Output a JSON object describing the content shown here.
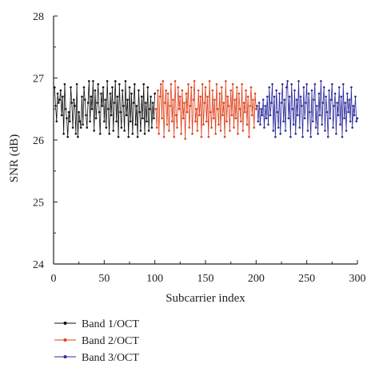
{
  "chart_data": {
    "type": "line",
    "xlabel": "Subcarrier index",
    "ylabel": "SNR (dB)",
    "xlim": [
      0,
      300
    ],
    "ylim": [
      24,
      28
    ],
    "xticks": [
      0,
      50,
      100,
      150,
      200,
      250,
      300
    ],
    "yticks": [
      24,
      25,
      26,
      27,
      28
    ],
    "grid": false,
    "legend_position": "bottom-left",
    "series": [
      {
        "name": "Band 1/OCT",
        "color": "#111111",
        "x": [
          1,
          2,
          3,
          4,
          5,
          6,
          7,
          8,
          9,
          10,
          11,
          12,
          13,
          14,
          15,
          16,
          17,
          18,
          19,
          20,
          21,
          22,
          23,
          24,
          25,
          26,
          27,
          28,
          29,
          30,
          31,
          32,
          33,
          34,
          35,
          36,
          37,
          38,
          39,
          40,
          41,
          42,
          43,
          44,
          45,
          46,
          47,
          48,
          49,
          50,
          51,
          52,
          53,
          54,
          55,
          56,
          57,
          58,
          59,
          60,
          61,
          62,
          63,
          64,
          65,
          66,
          67,
          68,
          69,
          70,
          71,
          72,
          73,
          74,
          75,
          76,
          77,
          78,
          79,
          80,
          81,
          82,
          83,
          84,
          85,
          86,
          87,
          88,
          89,
          90,
          91,
          92,
          93,
          94,
          95,
          96,
          97,
          98,
          99,
          100
        ],
        "y": [
          26.85,
          26.55,
          26.3,
          26.75,
          26.6,
          26.65,
          26.8,
          26.4,
          26.7,
          26.1,
          26.9,
          26.5,
          26.35,
          26.05,
          26.45,
          26.3,
          26.85,
          26.6,
          26.2,
          26.65,
          26.55,
          26.1,
          26.9,
          26.05,
          26.45,
          26.3,
          26.2,
          26.7,
          26.25,
          26.85,
          26.65,
          26.4,
          26.2,
          26.6,
          26.95,
          26.3,
          26.7,
          26.5,
          26.95,
          26.15,
          26.8,
          26.35,
          26.6,
          26.9,
          26.45,
          26.1,
          26.75,
          26.55,
          26.85,
          26.3,
          26.65,
          26.2,
          26.95,
          26.5,
          26.1,
          26.75,
          26.4,
          26.85,
          26.15,
          26.6,
          26.95,
          26.3,
          26.7,
          26.05,
          26.9,
          26.45,
          26.2,
          26.8,
          26.55,
          26.15,
          26.95,
          26.4,
          26.65,
          26.05,
          26.85,
          26.3,
          26.75,
          26.1,
          26.6,
          26.9,
          26.25,
          26.55,
          26.05,
          26.8,
          26.45,
          26.15,
          26.7,
          26.35,
          26.9,
          26.1,
          26.6,
          26.3,
          26.85,
          26.15,
          26.5,
          26.7,
          26.2,
          26.6,
          26.35,
          26.75
        ]
      },
      {
        "name": "Band 2/OCT",
        "color": "#e0401a",
        "x": [
          101,
          102,
          103,
          104,
          105,
          106,
          107,
          108,
          109,
          110,
          111,
          112,
          113,
          114,
          115,
          116,
          117,
          118,
          119,
          120,
          121,
          122,
          123,
          124,
          125,
          126,
          127,
          128,
          129,
          130,
          131,
          132,
          133,
          134,
          135,
          136,
          137,
          138,
          139,
          140,
          141,
          142,
          143,
          144,
          145,
          146,
          147,
          148,
          149,
          150,
          151,
          152,
          153,
          154,
          155,
          156,
          157,
          158,
          159,
          160,
          161,
          162,
          163,
          164,
          165,
          166,
          167,
          168,
          169,
          170,
          171,
          172,
          173,
          174,
          175,
          176,
          177,
          178,
          179,
          180,
          181,
          182,
          183,
          184,
          185,
          186,
          187,
          188,
          189,
          190,
          191,
          192,
          193,
          194,
          195,
          196,
          197,
          198,
          199,
          200
        ],
        "y": [
          26.5,
          26.2,
          26.8,
          26.1,
          26.7,
          26.9,
          26.35,
          26.95,
          26.05,
          26.6,
          26.8,
          26.25,
          26.75,
          26.15,
          26.55,
          26.9,
          26.3,
          26.65,
          26.05,
          26.95,
          26.4,
          26.2,
          26.85,
          26.5,
          26.7,
          26.1,
          26.8,
          26.35,
          26.6,
          26.02,
          26.75,
          26.45,
          26.9,
          26.2,
          26.55,
          26.85,
          26.1,
          26.65,
          26.95,
          26.3,
          26.5,
          26.15,
          26.8,
          26.4,
          26.7,
          26.05,
          26.9,
          26.25,
          26.6,
          26.85,
          26.3,
          26.7,
          26.05,
          26.95,
          26.45,
          26.2,
          26.8,
          26.35,
          26.65,
          26.1,
          26.9,
          26.5,
          26.25,
          26.75,
          26.15,
          26.85,
          26.4,
          26.6,
          26.05,
          26.95,
          26.3,
          26.7,
          26.55,
          26.15,
          26.8,
          26.4,
          26.9,
          26.2,
          26.65,
          26.35,
          26.85,
          26.1,
          26.75,
          26.5,
          26.3,
          26.9,
          26.15,
          26.6,
          26.45,
          26.8,
          26.25,
          26.7,
          26.05,
          26.55,
          26.85,
          26.4,
          26.65,
          26.2,
          26.75,
          26.5
        ]
      },
      {
        "name": "Band 3/OCT",
        "color": "#2a2a9c",
        "x": [
          201,
          202,
          203,
          204,
          205,
          206,
          207,
          208,
          209,
          210,
          211,
          212,
          213,
          214,
          215,
          216,
          217,
          218,
          219,
          220,
          221,
          222,
          223,
          224,
          225,
          226,
          227,
          228,
          229,
          230,
          231,
          232,
          233,
          234,
          235,
          236,
          237,
          238,
          239,
          240,
          241,
          242,
          243,
          244,
          245,
          246,
          247,
          248,
          249,
          250,
          251,
          252,
          253,
          254,
          255,
          256,
          257,
          258,
          259,
          260,
          261,
          262,
          263,
          264,
          265,
          266,
          267,
          268,
          269,
          270,
          271,
          272,
          273,
          274,
          275,
          276,
          277,
          278,
          279,
          280,
          281,
          282,
          283,
          284,
          285,
          286,
          287,
          288,
          289,
          290,
          291,
          292,
          293,
          294,
          295,
          296,
          297,
          298,
          299,
          300
        ],
        "y": [
          26.55,
          26.3,
          26.6,
          26.25,
          26.5,
          26.4,
          26.65,
          26.2,
          26.55,
          26.35,
          26.7,
          26.25,
          26.85,
          26.4,
          26.6,
          26.9,
          26.15,
          26.7,
          26.05,
          26.8,
          26.45,
          26.2,
          26.75,
          26.1,
          26.6,
          26.9,
          26.3,
          26.65,
          26.15,
          26.85,
          26.95,
          26.35,
          26.7,
          26.05,
          26.9,
          26.5,
          26.25,
          26.8,
          26.1,
          26.65,
          26.4,
          26.95,
          26.2,
          26.7,
          26.55,
          26.05,
          26.85,
          26.35,
          26.6,
          26.9,
          26.15,
          26.75,
          26.45,
          26.05,
          26.8,
          26.3,
          26.65,
          26.9,
          26.2,
          26.55,
          26.1,
          26.75,
          26.4,
          26.95,
          26.25,
          26.6,
          26.85,
          26.15,
          26.7,
          26.45,
          26.05,
          26.8,
          26.35,
          26.65,
          26.9,
          26.2,
          26.55,
          26.75,
          26.1,
          26.6,
          26.4,
          26.85,
          26.25,
          26.7,
          26.05,
          26.9,
          26.35,
          26.6,
          26.15,
          26.75,
          26.45,
          26.65,
          26.3,
          26.85,
          26.2,
          26.55,
          26.4,
          26.7,
          26.3,
          26.35
        ]
      }
    ]
  }
}
